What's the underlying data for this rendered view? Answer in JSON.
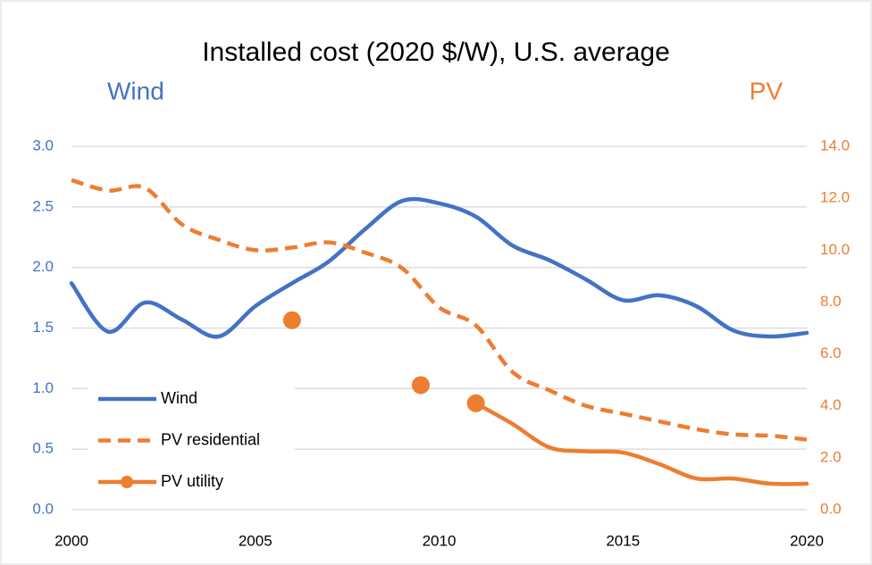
{
  "chart_data": {
    "type": "line",
    "title": "Installed cost (2020 $/W), U.S. average",
    "ylabel": "Wind",
    "y2label": "PV",
    "x": [
      2000,
      2001,
      2002,
      2003,
      2004,
      2005,
      2006,
      2007,
      2008,
      2009,
      2010,
      2011,
      2012,
      2013,
      2014,
      2015,
      2016,
      2017,
      2018,
      2019,
      2020
    ],
    "xlim": [
      2000,
      2020
    ],
    "xticks": [
      2000,
      2005,
      2010,
      2015,
      2020
    ],
    "ylim": [
      0,
      3
    ],
    "yticks": [
      {
        "value": 0,
        "label": "0.0"
      },
      {
        "value": 0.5,
        "label": "0.5"
      },
      {
        "value": 1,
        "label": "1.0"
      },
      {
        "value": 1.5,
        "label": "1.5"
      },
      {
        "value": 2,
        "label": "2.0"
      },
      {
        "value": 2.5,
        "label": "2.5"
      },
      {
        "value": 3,
        "label": "3.0"
      }
    ],
    "y2lim": [
      0,
      14
    ],
    "y2ticks": [
      {
        "value": 0,
        "label": "0.0"
      },
      {
        "value": 2,
        "label": "2.0"
      },
      {
        "value": 4,
        "label": "4.0"
      },
      {
        "value": 6,
        "label": "6.0"
      },
      {
        "value": 8,
        "label": "8.0"
      },
      {
        "value": 10,
        "label": "10.0"
      },
      {
        "value": 12,
        "label": "12.0"
      },
      {
        "value": 14,
        "label": "14.0"
      }
    ],
    "grid": true,
    "smooth": true,
    "legend": "lower left",
    "series": [
      {
        "name": "Wind",
        "color": "#4472c4",
        "dash": false,
        "values": [
          1.87,
          1.47,
          1.71,
          1.57,
          1.43,
          1.68,
          1.87,
          2.05,
          2.32,
          2.55,
          2.53,
          2.42,
          2.18,
          2.06,
          1.9,
          1.73,
          1.77,
          1.68,
          1.48,
          1.43,
          1.46
        ]
      },
      {
        "name": "PV residential",
        "color": "#ed7d31",
        "dash": true,
        "axis": "y2",
        "values": [
          12.7,
          12.3,
          12.4,
          11.0,
          10.4,
          10.0,
          10.1,
          10.3,
          9.9,
          9.3,
          7.8,
          7.1,
          5.3,
          4.6,
          4.0,
          3.7,
          3.4,
          3.1,
          2.9,
          2.85,
          2.7
        ]
      },
      {
        "name": "PV utility",
        "color": "#ed7d31",
        "dash": false,
        "axis": "y2",
        "markers": true,
        "x": [
          2006,
          null,
          2009.5,
          null,
          2011,
          2012,
          2013,
          2014,
          2015,
          2016,
          2017,
          2018,
          2019,
          2020
        ],
        "values": [
          7.3,
          null,
          4.8,
          null,
          4.1,
          3.3,
          2.4,
          2.25,
          2.2,
          1.75,
          1.2,
          1.2,
          1.0,
          1.0
        ]
      }
    ]
  }
}
